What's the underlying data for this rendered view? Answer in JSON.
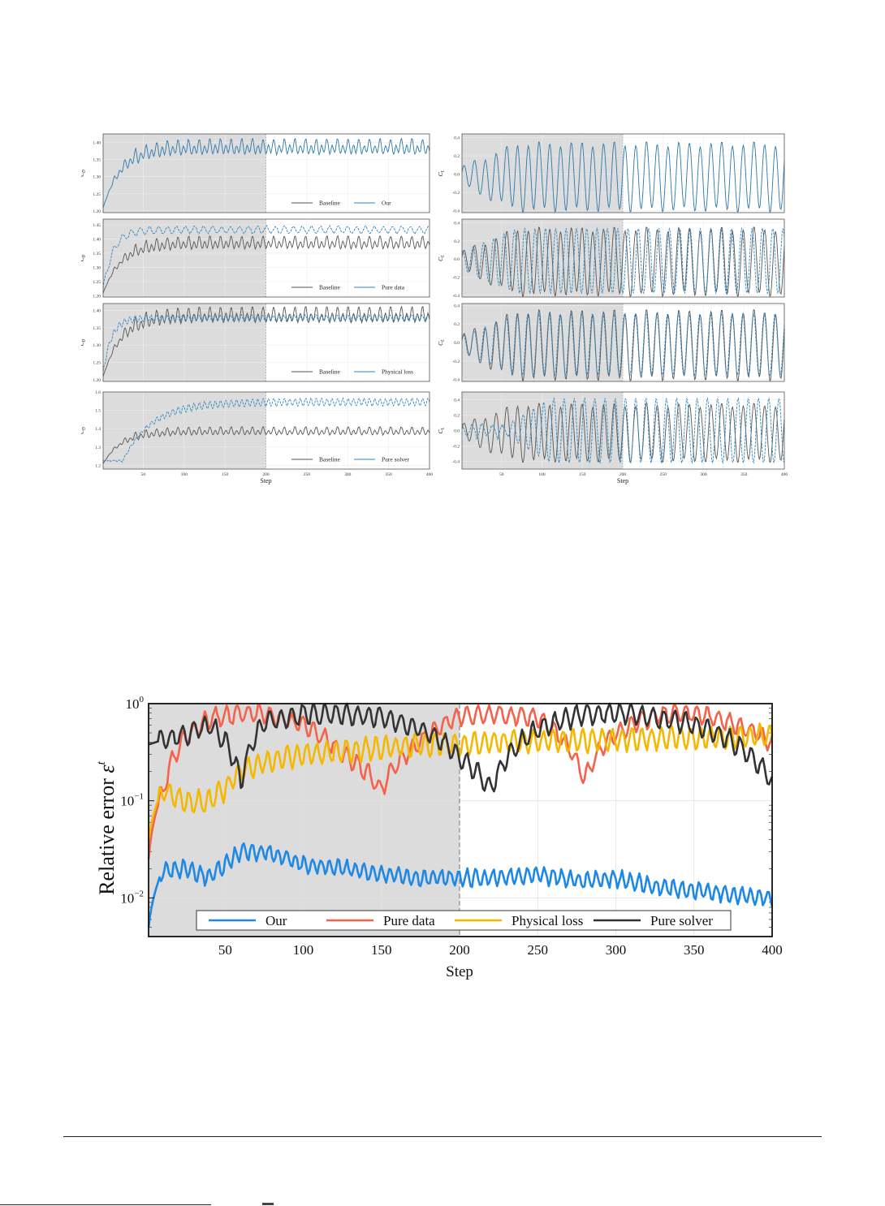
{
  "figure_top": {
    "xlabel": "Step",
    "xticks": [
      50,
      100,
      150,
      200,
      250,
      300,
      350,
      400
    ],
    "shade_until_step": 200,
    "colors": {
      "baseline": "#555555",
      "method": "#2e86c1",
      "shade": "#dcdcdc"
    },
    "left_column": {
      "ylabel": "C_D",
      "panels": [
        {
          "method": "Our",
          "baseline_label": "Baseline",
          "ylim": [
            1.195,
            1.425
          ],
          "yticks": [
            "1.20",
            "1.25",
            "1.30",
            "1.35",
            "1.40"
          ],
          "style": "solid"
        },
        {
          "method": "Pure data",
          "baseline_label": "Baseline",
          "ylim": [
            1.195,
            1.47
          ],
          "yticks": [
            "1.20",
            "1.25",
            "1.30",
            "1.35",
            "1.40",
            "1.45"
          ],
          "style": "dashed"
        },
        {
          "method": "Physical loss",
          "baseline_label": "Baseline",
          "ylim": [
            1.195,
            1.42
          ],
          "yticks": [
            "1.20",
            "1.25",
            "1.30",
            "1.35",
            "1.40"
          ],
          "style": "dashed"
        },
        {
          "method": "Pure solver",
          "baseline_label": "Baseline",
          "ylim": [
            1.18,
            1.6
          ],
          "yticks": [
            "1.2",
            "1.3",
            "1.4",
            "1.5",
            "1.6"
          ],
          "style": "dashed"
        }
      ]
    },
    "right_column": {
      "ylabel": "C_L",
      "panels": [
        {
          "method": "Our",
          "ylim": [
            -0.42,
            0.44
          ],
          "yticks": [
            "-0.4",
            "-0.2",
            "0.0",
            "0.2",
            "0.4"
          ],
          "style": "solid"
        },
        {
          "method": "Pure data",
          "ylim": [
            -0.42,
            0.44
          ],
          "yticks": [
            "-0.4",
            "-0.2",
            "0.0",
            "0.2",
            "0.4"
          ],
          "style": "dashed"
        },
        {
          "method": "Physical loss",
          "ylim": [
            -0.42,
            0.42
          ],
          "yticks": [
            "-0.4",
            "-0.2",
            "0.0",
            "0.2",
            "0.4"
          ],
          "style": "dashed"
        },
        {
          "method": "Pure solver",
          "ylim": [
            -0.5,
            0.5
          ],
          "yticks": [
            "-0.4",
            "-0.2",
            "0.0",
            "0.2",
            "0.4"
          ],
          "style": "dashed"
        }
      ]
    }
  },
  "chart_data": [
    {
      "type": "line",
      "title": "Drag coefficient C_D vs Step (Baseline vs methods)",
      "xlabel": "Step",
      "ylabel": "C_D",
      "xlim": [
        1,
        400
      ],
      "shaded_region": [
        1,
        200
      ],
      "legend_position": "lower right",
      "subplots": [
        {
          "legend": [
            "Baseline",
            "Our"
          ],
          "ylim": [
            1.2,
            1.42
          ],
          "series": [
            {
              "name": "Baseline",
              "x": [
                1,
                25,
                50,
                75,
                100,
                200,
                300,
                400
              ],
              "values": [
                1.2,
                1.3,
                1.36,
                1.385,
                1.385,
                1.385,
                1.385,
                1.385
              ],
              "note": "oscillates ±0.02 around 1.385 after step 50"
            },
            {
              "name": "Our",
              "x": [
                1,
                25,
                50,
                75,
                100,
                200,
                300,
                400
              ],
              "values": [
                1.2,
                1.3,
                1.36,
                1.385,
                1.385,
                1.385,
                1.385,
                1.385
              ]
            }
          ]
        },
        {
          "legend": [
            "Baseline",
            "Pure data"
          ],
          "ylim": [
            1.2,
            1.47
          ],
          "series": [
            {
              "name": "Baseline",
              "x": [
                1,
                25,
                50,
                75,
                100,
                200,
                300,
                400
              ],
              "values": [
                1.2,
                1.3,
                1.36,
                1.385,
                1.385,
                1.385,
                1.385,
                1.385
              ]
            },
            {
              "name": "Pure data",
              "x": [
                1,
                15,
                25,
                50,
                100,
                200,
                300,
                400
              ],
              "values": [
                1.2,
                1.27,
                1.42,
                1.43,
                1.43,
                1.43,
                1.43,
                1.43
              ]
            }
          ]
        },
        {
          "legend": [
            "Baseline",
            "Physical loss"
          ],
          "ylim": [
            1.2,
            1.42
          ],
          "series": [
            {
              "name": "Baseline",
              "x": [
                1,
                25,
                50,
                75,
                100,
                200,
                300,
                400
              ],
              "values": [
                1.2,
                1.3,
                1.36,
                1.385,
                1.385,
                1.385,
                1.385,
                1.385
              ]
            },
            {
              "name": "Physical loss",
              "x": [
                1,
                15,
                25,
                50,
                100,
                200,
                300,
                400
              ],
              "values": [
                1.2,
                1.3,
                1.375,
                1.38,
                1.38,
                1.38,
                1.38,
                1.38
              ]
            }
          ]
        },
        {
          "legend": [
            "Baseline",
            "Pure solver"
          ],
          "ylim": [
            1.2,
            1.6
          ],
          "series": [
            {
              "name": "Baseline",
              "x": [
                1,
                25,
                50,
                75,
                100,
                200,
                300,
                400
              ],
              "values": [
                1.2,
                1.3,
                1.36,
                1.385,
                1.385,
                1.385,
                1.385,
                1.385
              ]
            },
            {
              "name": "Pure solver",
              "x": [
                1,
                25,
                50,
                75,
                100,
                150,
                200,
                300,
                400
              ],
              "values": [
                1.22,
                1.23,
                1.35,
                1.47,
                1.52,
                1.54,
                1.545,
                1.545,
                1.545
              ]
            }
          ]
        }
      ]
    },
    {
      "type": "line",
      "title": "Lift coefficient C_L vs Step (Baseline vs methods)",
      "xlabel": "Step",
      "ylabel": "C_L",
      "xlim": [
        1,
        400
      ],
      "shaded_region": [
        1,
        200
      ],
      "subplots": [
        {
          "method": "Our",
          "ylim": [
            -0.4,
            0.4
          ],
          "description": "sinusoidal oscillation, amplitude ~0.1 growing to ~0.35 by step 50, period ~13 steps; Our overlaps Baseline"
        },
        {
          "method": "Pure data",
          "ylim": [
            -0.4,
            0.4
          ],
          "description": "oscillation amplitude ~0.35, slightly phase-shifted from Baseline"
        },
        {
          "method": "Physical loss",
          "ylim": [
            -0.4,
            0.4
          ],
          "description": "oscillation amplitude ~0.3, closely follows Baseline"
        },
        {
          "method": "Pure solver",
          "ylim": [
            -0.45,
            0.45
          ],
          "description": "noisy small oscillation (~0.1) before step 60, then amplitude ~0.4, phase-shifted from Baseline"
        }
      ]
    },
    {
      "type": "line",
      "title": "Relative error vs Step",
      "xlabel": "Step",
      "ylabel": "Relative error ε^t",
      "yscale": "log",
      "ylim": [
        0.004,
        1.0
      ],
      "xlim": [
        1,
        400
      ],
      "xticks": [
        50,
        100,
        150,
        200,
        250,
        300,
        350,
        400
      ],
      "yticks": [
        "10^-2",
        "10^-1",
        "10^0"
      ],
      "shaded_region": [
        1,
        200
      ],
      "grid": true,
      "legend_position": "lower center",
      "legend": [
        "Our",
        "Pure data",
        "Physical loss",
        "Pure solver"
      ],
      "x": [
        1,
        10,
        25,
        40,
        50,
        60,
        75,
        100,
        125,
        150,
        175,
        200,
        220,
        250,
        280,
        300,
        325,
        350,
        375,
        400
      ],
      "series": [
        {
          "name": "Our",
          "color": "#1e88e5",
          "values": [
            0.005,
            0.019,
            0.02,
            0.016,
            0.022,
            0.03,
            0.03,
            0.022,
            0.02,
            0.018,
            0.016,
            0.016,
            0.016,
            0.017,
            0.015,
            0.016,
            0.013,
            0.012,
            0.011,
            0.01
          ]
        },
        {
          "name": "Pure data",
          "color": "#f4624a",
          "values": [
            0.025,
            0.12,
            0.45,
            0.7,
            0.75,
            0.78,
            0.78,
            0.6,
            0.3,
            0.13,
            0.4,
            0.75,
            0.78,
            0.72,
            0.16,
            0.5,
            0.75,
            0.8,
            0.62,
            0.4
          ]
        },
        {
          "name": "Physical loss",
          "color": "#f5b800",
          "values": [
            0.04,
            0.13,
            0.095,
            0.1,
            0.13,
            0.2,
            0.25,
            0.3,
            0.32,
            0.35,
            0.38,
            0.38,
            0.4,
            0.41,
            0.42,
            0.43,
            0.44,
            0.45,
            0.45,
            0.47
          ]
        },
        {
          "name": "Pure solver",
          "color": "#333333",
          "values": [
            0.38,
            0.42,
            0.48,
            0.6,
            0.4,
            0.15,
            0.65,
            0.78,
            0.78,
            0.72,
            0.55,
            0.28,
            0.13,
            0.55,
            0.78,
            0.8,
            0.72,
            0.6,
            0.4,
            0.15
          ]
        }
      ]
    }
  ],
  "figure_bottom": {
    "ylabel": "Relative error",
    "ylabel_symbol": "ε",
    "ylabel_sup": "t",
    "xlabel": "Step",
    "xticks": [
      "50",
      "100",
      "150",
      "200",
      "250",
      "300",
      "350",
      "400"
    ],
    "yticks": [
      {
        "base": "10",
        "exp": "0"
      },
      {
        "base": "10",
        "exp": "−1"
      },
      {
        "base": "10",
        "exp": "−2"
      }
    ],
    "legend": [
      "Our",
      "Pure data",
      "Physical loss",
      "Pure solver"
    ]
  }
}
